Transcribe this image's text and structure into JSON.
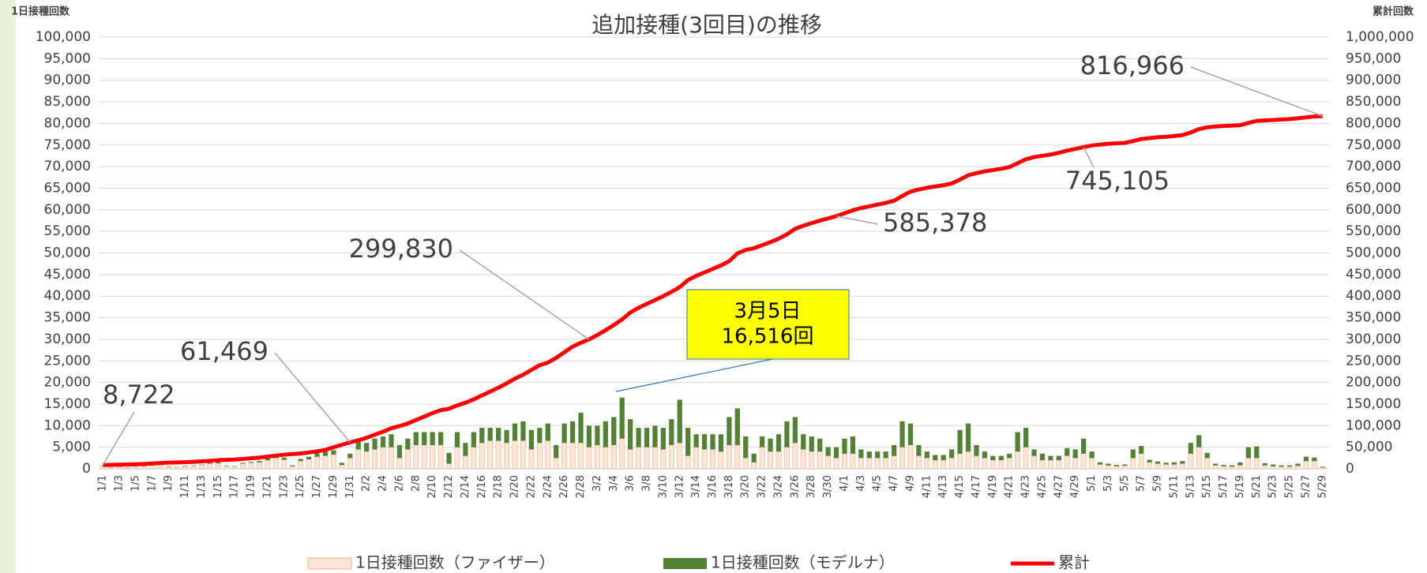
{
  "chart_data": {
    "type": "combo",
    "title": "追加接種(3回目)の推移",
    "y_label": "1日接種回数",
    "y2_label": "累計回数",
    "callout": [
      "3月5日",
      "16,516回"
    ],
    "stacked": true,
    "grid": true,
    "legend": "bottom",
    "categories": [
      "1/1",
      null,
      "1/3",
      null,
      "1/5",
      null,
      "1/7",
      null,
      "1/9",
      null,
      "1/11",
      null,
      "1/13",
      null,
      "1/15",
      null,
      "1/17",
      null,
      "1/19",
      null,
      "1/21",
      null,
      "1/23",
      null,
      "1/25",
      null,
      "1/27",
      null,
      "1/29",
      null,
      "1/31",
      null,
      "2/2",
      null,
      "2/4",
      null,
      "2/6",
      null,
      "2/8",
      null,
      "2/10",
      null,
      "2/12",
      null,
      "2/14",
      null,
      "2/16",
      null,
      "2/18",
      null,
      "2/20",
      null,
      "2/22",
      null,
      "2/24",
      null,
      "2/26",
      null,
      "2/28",
      null,
      "3/2",
      null,
      "3/4",
      null,
      "3/6",
      null,
      "3/8",
      null,
      "3/10",
      null,
      "3/12",
      null,
      "3/14",
      null,
      "3/16",
      null,
      "3/18",
      null,
      "3/20",
      null,
      "3/22",
      null,
      "3/24",
      null,
      "3/26",
      null,
      "3/28",
      null,
      "3/30",
      null,
      "4/1",
      null,
      "4/3",
      null,
      "4/5",
      null,
      "4/7",
      null,
      "4/9",
      null,
      "4/11",
      null,
      "4/13",
      null,
      "4/15",
      null,
      "4/17",
      null,
      "4/19",
      null,
      "4/21",
      null,
      "4/23",
      null,
      "4/25",
      null,
      "4/27",
      null,
      "4/29",
      null,
      "5/1",
      null,
      "5/3",
      null,
      "5/5",
      null,
      "5/7",
      null,
      "5/9",
      null,
      "5/11",
      null,
      "5/13",
      null,
      "5/15",
      null,
      "5/17",
      null,
      "5/19",
      null,
      "5/21",
      null,
      "5/23",
      null,
      "5/25",
      null,
      "5/27",
      null,
      "5/29"
    ],
    "ylim": [
      0,
      100000
    ],
    "yticks": [
      0,
      {
        "value": 5000,
        "label": "5,000"
      },
      {
        "value": 10000,
        "label": "10,000"
      },
      {
        "value": 15000,
        "label": "15,000"
      },
      {
        "value": 20000,
        "label": "20,000"
      },
      {
        "value": 25000,
        "label": "25,000"
      },
      {
        "value": 30000,
        "label": "30,000"
      },
      {
        "value": 35000,
        "label": "35,000"
      },
      {
        "value": 40000,
        "label": "40,000"
      },
      {
        "value": 45000,
        "label": "45,000"
      },
      {
        "value": 50000,
        "label": "50,000"
      },
      {
        "value": 55000,
        "label": "55,000"
      },
      {
        "value": 60000,
        "label": "60,000"
      },
      {
        "value": 65000,
        "label": "65,000"
      },
      {
        "value": 70000,
        "label": "70,000"
      },
      {
        "value": 75000,
        "label": "75,000"
      },
      {
        "value": 80000,
        "label": "80,000"
      },
      {
        "value": 85000,
        "label": "85,000"
      },
      {
        "value": 90000,
        "label": "90,000"
      },
      {
        "value": 95000,
        "label": "95,000"
      },
      {
        "value": 100000,
        "label": "100,000"
      }
    ],
    "y2lim": [
      0,
      1000000
    ],
    "y2ticks": [
      0,
      {
        "value": 50000,
        "label": "50,000"
      },
      {
        "value": 100000,
        "label": "100,000"
      },
      {
        "value": 150000,
        "label": "150,000"
      },
      {
        "value": 200000,
        "label": "200,000"
      },
      {
        "value": 250000,
        "label": "250,000"
      },
      {
        "value": 300000,
        "label": "300,000"
      },
      {
        "value": 350000,
        "label": "350,000"
      },
      {
        "value": 400000,
        "label": "400,000"
      },
      {
        "value": 450000,
        "label": "450,000"
      },
      {
        "value": 500000,
        "label": "500,000"
      },
      {
        "value": 550000,
        "label": "550,000"
      },
      {
        "value": 600000,
        "label": "600,000"
      },
      {
        "value": 650000,
        "label": "650,000"
      },
      {
        "value": 700000,
        "label": "700,000"
      },
      {
        "value": 750000,
        "label": "750,000"
      },
      {
        "value": 800000,
        "label": "800,000"
      },
      {
        "value": 850000,
        "label": "850,000"
      },
      {
        "value": 900000,
        "label": "900,000"
      },
      {
        "value": 950000,
        "label": "950,000"
      },
      {
        "value": 1000000,
        "label": "1,000,000"
      }
    ],
    "series": [
      {
        "name": "1日接種回数（ファイザー）",
        "type": "bar",
        "color": "#fbe5d6",
        "values": [
          700,
          300,
          400,
          300,
          400,
          600,
          800,
          900,
          500,
          400,
          600,
          700,
          900,
          1200,
          1300,
          600,
          500,
          1200,
          1400,
          1500,
          2000,
          2500,
          2100,
          600,
          1800,
          2200,
          2800,
          3000,
          3300,
          900,
          2500,
          4500,
          4000,
          4500,
          5000,
          5000,
          2500,
          4500,
          5500,
          5500,
          5500,
          5500,
          1200,
          5000,
          3000,
          5000,
          6000,
          6500,
          6500,
          6000,
          6500,
          6500,
          4500,
          6000,
          6500,
          2500,
          6000,
          6000,
          6000,
          5000,
          5500,
          5000,
          5500,
          7000,
          4500,
          5000,
          5000,
          5000,
          4500,
          5500,
          6000,
          3000,
          5000,
          4500,
          4500,
          4000,
          5500,
          5500,
          2500,
          1500,
          5000,
          4000,
          4000,
          5000,
          6000,
          4500,
          4000,
          4000,
          3000,
          2500,
          3500,
          3500,
          2500,
          2500,
          2500,
          2500,
          3000,
          5000,
          5500,
          3000,
          2500,
          2000,
          2000,
          2500,
          3500,
          4000,
          3000,
          2500,
          2000,
          2000,
          2500,
          4000,
          5000,
          3000,
          2000,
          2000,
          2000,
          3000,
          2500,
          3500,
          2500,
          1000,
          800,
          600,
          700,
          2500,
          3500,
          1500,
          1200,
          1000,
          1000,
          1200,
          3500,
          5000,
          2500,
          800,
          600,
          500,
          800,
          2500,
          2500,
          800,
          600,
          500,
          500,
          700,
          1800,
          1800,
          300
        ]
      },
      {
        "name": "1日接種回数（モデルナ）",
        "type": "bar",
        "color": "#548235",
        "values": [
          100,
          50,
          50,
          50,
          50,
          100,
          100,
          100,
          100,
          50,
          100,
          100,
          100,
          200,
          300,
          100,
          100,
          200,
          200,
          300,
          400,
          600,
          500,
          200,
          500,
          600,
          800,
          1000,
          1000,
          500,
          1000,
          2500,
          2000,
          2500,
          2500,
          3000,
          3000,
          2500,
          3000,
          3000,
          3000,
          3000,
          2500,
          3500,
          3000,
          3500,
          3500,
          3000,
          3000,
          3000,
          4000,
          4500,
          4500,
          3500,
          4000,
          3000,
          4500,
          5000,
          7000,
          5000,
          4500,
          6000,
          6500,
          9516,
          7000,
          4500,
          4500,
          5000,
          5000,
          6000,
          10000,
          6500,
          3000,
          3500,
          3500,
          4000,
          6500,
          8500,
          5000,
          2000,
          2500,
          3000,
          4000,
          6000,
          6000,
          3500,
          3500,
          3000,
          2000,
          2500,
          3500,
          4000,
          2000,
          1500,
          1500,
          1500,
          2500,
          6000,
          5000,
          2500,
          1500,
          1200,
          1200,
          2000,
          5500,
          6500,
          2500,
          1500,
          1000,
          1000,
          1000,
          4500,
          4500,
          1500,
          1500,
          1000,
          1000,
          1800,
          2000,
          3500,
          1500,
          500,
          400,
          300,
          300,
          2000,
          1800,
          600,
          500,
          400,
          500,
          600,
          2500,
          2800,
          1200,
          400,
          300,
          300,
          700,
          2500,
          2700,
          500,
          400,
          300,
          300,
          500,
          1000,
          800,
          200
        ]
      },
      {
        "name": "累計",
        "type": "line",
        "axis": "y2",
        "color": "#ff0000",
        "values": [
          8722,
          9200,
          9600,
          10000,
          10500,
          11200,
          12300,
          13500,
          14300,
          14800,
          15400,
          16200,
          17300,
          18600,
          20000,
          20800,
          21500,
          22900,
          24400,
          26100,
          28300,
          30500,
          32800,
          34200,
          35500,
          37800,
          40500,
          43800,
          50000,
          55500,
          61469,
          66000,
          72000,
          79000,
          86000,
          94000,
          99000,
          105000,
          113000,
          121000,
          129000,
          136000,
          139000,
          147000,
          153000,
          161000,
          170000,
          179000,
          188000,
          198000,
          209000,
          218000,
          229000,
          240000,
          246000,
          257000,
          270000,
          283000,
          292000,
          299830,
          310000,
          321000,
          333000,
          346000,
          362000,
          373000,
          382000,
          391000,
          400000,
          410000,
          421000,
          437000,
          447000,
          455000,
          463000,
          471000,
          481000,
          499000,
          507000,
          511000,
          518000,
          525000,
          533000,
          543000,
          556000,
          563000,
          569000,
          575000,
          580000,
          585378,
          592000,
          599000,
          604000,
          608000,
          612000,
          616000,
          621000,
          632000,
          642000,
          647000,
          651000,
          654000,
          657000,
          661000,
          670000,
          680000,
          685000,
          689000,
          692000,
          695000,
          699000,
          708000,
          717000,
          722000,
          725000,
          728000,
          732000,
          737000,
          741000,
          745105,
          749000,
          751000,
          753000,
          754000,
          755000,
          759000,
          764000,
          766000,
          768000,
          769000,
          771000,
          773000,
          779000,
          787000,
          791000,
          793000,
          794000,
          795000,
          796000,
          801000,
          806000,
          807000,
          808000,
          809000,
          810000,
          812000,
          814000,
          816000,
          816966
        ],
        "value_labels": [
          "8,722",
          null,
          null,
          null,
          null,
          null,
          null,
          null,
          null,
          null,
          null,
          null,
          null,
          null,
          null,
          null,
          null,
          null,
          null,
          null,
          null,
          null,
          null,
          null,
          null,
          null,
          null,
          null,
          null,
          null,
          "61,469",
          null,
          null,
          null,
          null,
          null,
          null,
          null,
          null,
          null,
          null,
          null,
          null,
          null,
          null,
          null,
          null,
          null,
          null,
          null,
          null,
          null,
          null,
          null,
          null,
          null,
          null,
          null,
          null,
          "299,830",
          null,
          null,
          null,
          null,
          null,
          null,
          null,
          null,
          null,
          null,
          null,
          null,
          null,
          null,
          null,
          null,
          null,
          null,
          null,
          null,
          null,
          null,
          null,
          null,
          null,
          null,
          null,
          null,
          null,
          "585,378",
          null,
          null,
          null,
          null,
          null,
          null,
          null,
          null,
          null,
          null,
          null,
          null,
          null,
          null,
          null,
          null,
          null,
          null,
          null,
          null,
          null,
          null,
          null,
          null,
          null,
          null,
          null,
          null,
          null,
          "745,105",
          null,
          null,
          null,
          null,
          null,
          null,
          null,
          null,
          null,
          null,
          null,
          null,
          null,
          null,
          null,
          null,
          null,
          null,
          null,
          null,
          null,
          null,
          null,
          null,
          null,
          null,
          null,
          null,
          "816,966"
        ]
      }
    ]
  }
}
